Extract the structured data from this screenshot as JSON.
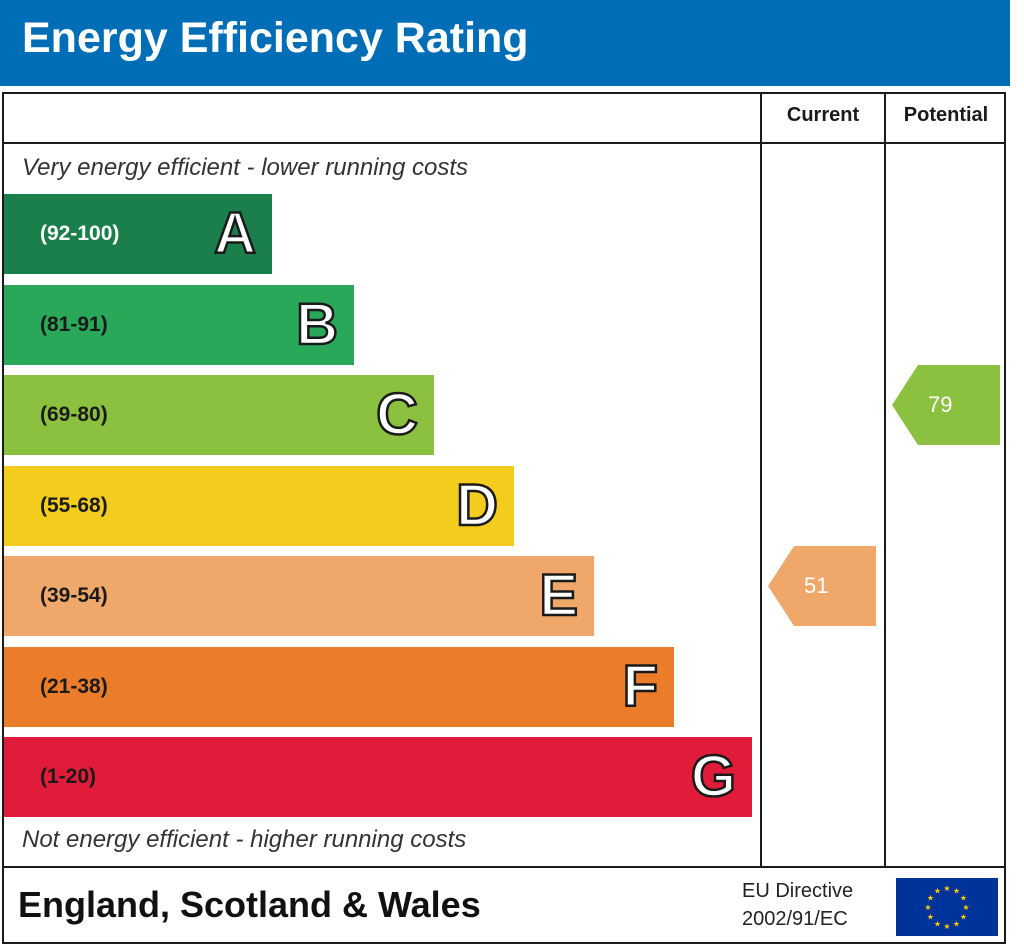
{
  "header": {
    "title": "Energy Efficiency Rating",
    "color": "#006eb6"
  },
  "columns": {
    "current": "Current",
    "potential": "Potential"
  },
  "notes": {
    "top": "Very energy efficient - lower running costs",
    "bottom": "Not energy efficient - higher running costs"
  },
  "footer": {
    "country": "England, Scotland & Wales",
    "directive_line1": "EU Directive",
    "directive_line2": "2002/91/EC",
    "flag_icon": "eu-flag-icon"
  },
  "chart_data": {
    "type": "bar",
    "title": "Energy Efficiency Rating",
    "categories": [
      "A",
      "B",
      "C",
      "D",
      "E",
      "F",
      "G"
    ],
    "ranges": [
      "(92-100)",
      "(81-91)",
      "(69-80)",
      "(55-68)",
      "(39-54)",
      "(21-38)",
      "(1-20)"
    ],
    "colors": [
      "#1a7f4b",
      "#2aa85a",
      "#8cc03f",
      "#f4cc1d",
      "#f0a86a",
      "#eb7d2a",
      "#e11b3a"
    ],
    "current": {
      "value": 51,
      "band": "E",
      "color": "#f0a86a"
    },
    "potential": {
      "value": 79,
      "band": "C",
      "color": "#8cc03f"
    }
  }
}
